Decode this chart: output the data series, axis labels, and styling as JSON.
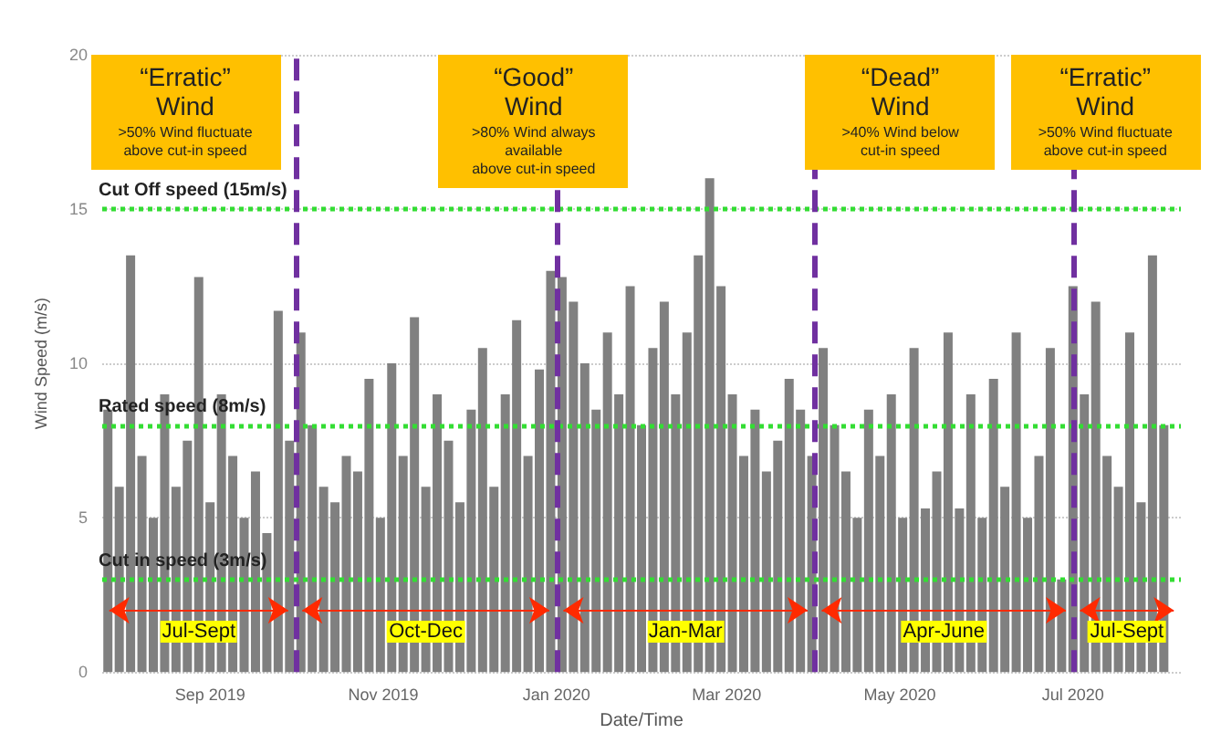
{
  "chart_data": {
    "type": "bar",
    "xlabel": "Date/Time",
    "ylabel": "Wind Speed (m/s)",
    "color": "#808080",
    "x": [
      "2019-07-27",
      "2019-07-31",
      "2019-08-04",
      "2019-08-08",
      "2019-08-12",
      "2019-08-16",
      "2019-08-20",
      "2019-08-24",
      "2019-08-28",
      "2019-09-01",
      "2019-09-05",
      "2019-09-09",
      "2019-09-13",
      "2019-09-17",
      "2019-09-21",
      "2019-09-25",
      "2019-09-29",
      "2019-10-03",
      "2019-10-07",
      "2019-10-11",
      "2019-10-15",
      "2019-10-19",
      "2019-10-23",
      "2019-10-27",
      "2019-10-31",
      "2019-11-04",
      "2019-11-08",
      "2019-11-12",
      "2019-11-16",
      "2019-11-20",
      "2019-11-24",
      "2019-11-28",
      "2019-12-02",
      "2019-12-06",
      "2019-12-10",
      "2019-12-14",
      "2019-12-18",
      "2019-12-22",
      "2019-12-26",
      "2019-12-30",
      "2020-01-03",
      "2020-01-07",
      "2020-01-11",
      "2020-01-15",
      "2020-01-19",
      "2020-01-23",
      "2020-01-27",
      "2020-01-31",
      "2020-02-04",
      "2020-02-08",
      "2020-02-12",
      "2020-02-16",
      "2020-02-20",
      "2020-02-24",
      "2020-02-28",
      "2020-03-03",
      "2020-03-07",
      "2020-03-11",
      "2020-03-15",
      "2020-03-19",
      "2020-03-23",
      "2020-03-27",
      "2020-03-31",
      "2020-04-04",
      "2020-04-08",
      "2020-04-12",
      "2020-04-16",
      "2020-04-20",
      "2020-04-24",
      "2020-04-28",
      "2020-05-02",
      "2020-05-06",
      "2020-05-10",
      "2020-05-14",
      "2020-05-18",
      "2020-05-22",
      "2020-05-26",
      "2020-05-30",
      "2020-06-03",
      "2020-06-07",
      "2020-06-11",
      "2020-06-15",
      "2020-06-19",
      "2020-06-23",
      "2020-06-27",
      "2020-07-01",
      "2020-07-05",
      "2020-07-09",
      "2020-07-13",
      "2020-07-17",
      "2020-07-21",
      "2020-07-25",
      "2020-07-29",
      "2020-08-02"
    ],
    "values": [
      8.5,
      6,
      13.5,
      7,
      5,
      9,
      6,
      7.5,
      12.8,
      5.5,
      9,
      7,
      5,
      6.5,
      4.5,
      11.7,
      7.5,
      11,
      8,
      6,
      5.5,
      7,
      6.5,
      9.5,
      5,
      10,
      7,
      11.5,
      6,
      9,
      7.5,
      5.5,
      8.5,
      10.5,
      6,
      9,
      11.4,
      7,
      9.8,
      13,
      12.8,
      12,
      10,
      8.5,
      11,
      9,
      12.5,
      8,
      10.5,
      12,
      9,
      11,
      13.5,
      16,
      12.5,
      9,
      7,
      8.5,
      6.5,
      7.5,
      9.5,
      8.5,
      7,
      10.5,
      8,
      6.5,
      5,
      8.5,
      7,
      9,
      5,
      10.5,
      5.3,
      6.5,
      11,
      5.3,
      9,
      5,
      9.5,
      6,
      11,
      5,
      7,
      10.5,
      3,
      12.5,
      9,
      12,
      7,
      6,
      11,
      5.5,
      13.5,
      8
    ],
    "xlim": [
      "2019-07-25",
      "2020-08-08"
    ],
    "xticks": [
      {
        "value": "2019-09-01",
        "label": "Sep 2019"
      },
      {
        "value": "2019-11-01",
        "label": "Nov 2019"
      },
      {
        "value": "2020-01-01",
        "label": "Jan 2020"
      },
      {
        "value": "2020-03-01",
        "label": "Mar 2020"
      },
      {
        "value": "2020-05-01",
        "label": "May 2020"
      },
      {
        "value": "2020-07-01",
        "label": "Jul 2020"
      }
    ],
    "ylim": [
      0,
      20
    ],
    "yticks": [
      0,
      5,
      10,
      15,
      20
    ],
    "grid": "y",
    "ref_lines": [
      {
        "axis": "y",
        "value": 15,
        "label": "Cut Off speed (15m/s)",
        "color": "#33dd33",
        "line_style": "dotted"
      },
      {
        "axis": "y",
        "value": 8,
        "label": "Rated speed (8m/s)",
        "color": "#33dd33",
        "line_style": "dotted"
      },
      {
        "axis": "y",
        "value": 3,
        "label": "Cut in speed (3m/s)",
        "color": "#33dd33",
        "line_style": "dotted"
      },
      {
        "axis": "x",
        "value": "2019-10-01",
        "color": "#7030a0",
        "line_style": "dashed"
      },
      {
        "axis": "x",
        "value": "2020-01-01",
        "color": "#7030a0",
        "line_style": "dashed"
      },
      {
        "axis": "x",
        "value": "2020-04-01",
        "color": "#7030a0",
        "line_style": "dashed"
      },
      {
        "axis": "x",
        "value": "2020-07-01",
        "color": "#7030a0",
        "line_style": "dashed"
      }
    ],
    "annotations": [
      "“Erratic”\nWind",
      ">50% Wind fluctuate\nabove cut-in speed",
      "“Good”\nWind",
      ">80% Wind always available\nabove cut-in speed",
      "“Dead”\nWind",
      ">40% Wind below\ncut-in speed",
      "“Erratic”\nWind",
      ">50% Wind fluctuate\nabove cut-in speed",
      "Jul-Sept",
      "Oct-Dec",
      "Jan-Mar",
      "Apr-June",
      "Jul-Sept"
    ]
  }
}
